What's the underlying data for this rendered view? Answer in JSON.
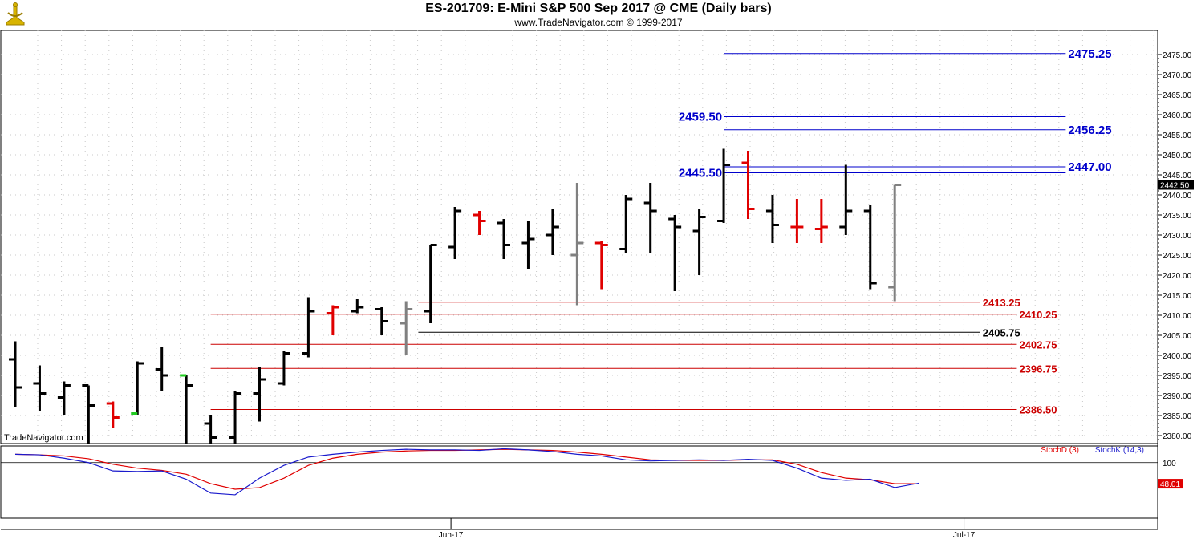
{
  "header": {
    "title": "ES-201709:  E-Mini S&P 500 Sep 2017 @ CME  (Daily bars)",
    "subtitle": "www.TradeNavigator.com © 1999-2017",
    "watermark": "TradeNavigator.com"
  },
  "colors": {
    "black_bar": "#000000",
    "red_bar": "#e00000",
    "gray_bar": "#808080",
    "green_tick": "#22cc22",
    "blue_level": "#0000cc",
    "red_level": "#cc0000",
    "stoch_d": "#e00000",
    "stoch_k": "#1a1acc"
  },
  "chart_data": {
    "type": "ohlc",
    "y_range": [
      2378,
      2481
    ],
    "y_ticks": [
      "2475.00",
      "2470.00",
      "2465.00",
      "2460.00",
      "2455.00",
      "2450.00",
      "2445.00",
      "2440.00",
      "2435.00",
      "2430.00",
      "2425.00",
      "2420.00",
      "2415.00",
      "2410.00",
      "2405.00",
      "2400.00",
      "2395.00",
      "2390.00",
      "2385.00",
      "2380.00"
    ],
    "last_price_label": "2442.50",
    "last_price": 2442.5,
    "x_labels": [
      {
        "label": "Jun-17",
        "bar": 18
      },
      {
        "label": "Jul-17",
        "bar": 39
      }
    ],
    "bars": [
      {
        "o": 2399,
        "h": 2403.5,
        "l": 2387,
        "c": 2392,
        "color": "black"
      },
      {
        "o": 2393,
        "h": 2397.5,
        "l": 2386,
        "c": 2390.5,
        "color": "black"
      },
      {
        "o": 2389.5,
        "h": 2393.5,
        "l": 2385,
        "c": 2392.5,
        "color": "black"
      },
      {
        "o": 2392.5,
        "h": 2392.5,
        "l": 2378,
        "c": 2387.5,
        "color": "black"
      },
      {
        "o": 2388,
        "h": 2388.5,
        "l": 2382,
        "c": 2384.5,
        "color": "red"
      },
      {
        "o": 2385.5,
        "h": 2398.5,
        "l": 2385,
        "c": 2398,
        "color": "black",
        "open_color": "green"
      },
      {
        "o": 2396.5,
        "h": 2402,
        "l": 2391,
        "c": 2395,
        "color": "black"
      },
      {
        "o": 2395,
        "h": 2395,
        "l": 2378,
        "c": 2392.5,
        "color": "black",
        "open_color": "green"
      },
      {
        "o": 2383,
        "h": 2385,
        "l": 2378,
        "c": 2379.5,
        "color": "black"
      },
      {
        "o": 2379.5,
        "h": 2391,
        "l": 2378,
        "c": 2390.5,
        "color": "black"
      },
      {
        "o": 2390.5,
        "h": 2397,
        "l": 2383.5,
        "c": 2394,
        "color": "black"
      },
      {
        "o": 2393,
        "h": 2401,
        "l": 2392.5,
        "c": 2400.5,
        "color": "black"
      },
      {
        "o": 2400.5,
        "h": 2414.5,
        "l": 2399.5,
        "c": 2411,
        "color": "black"
      },
      {
        "o": 2410.5,
        "h": 2412.5,
        "l": 2405,
        "c": 2412,
        "color": "red"
      },
      {
        "o": 2411,
        "h": 2414,
        "l": 2410.5,
        "c": 2412,
        "color": "black"
      },
      {
        "o": 2411.5,
        "h": 2412,
        "l": 2405,
        "c": 2408.5,
        "color": "black"
      },
      {
        "o": 2408,
        "h": 2413.5,
        "l": 2400,
        "c": 2411.5,
        "color": "gray"
      },
      {
        "o": 2411,
        "h": 2427.5,
        "l": 2408,
        "c": 2427.5,
        "color": "black"
      },
      {
        "o": 2427,
        "h": 2437,
        "l": 2424,
        "c": 2436,
        "color": "black"
      },
      {
        "o": 2435,
        "h": 2436,
        "l": 2430,
        "c": 2433.5,
        "color": "red"
      },
      {
        "o": 2433,
        "h": 2434,
        "l": 2424,
        "c": 2427.5,
        "color": "black"
      },
      {
        "o": 2428,
        "h": 2433.5,
        "l": 2421.5,
        "c": 2429,
        "color": "black"
      },
      {
        "o": 2430,
        "h": 2436.5,
        "l": 2425,
        "c": 2432,
        "color": "black"
      },
      {
        "o": 2425,
        "h": 2443,
        "l": 2412.5,
        "c": 2428,
        "color": "gray"
      },
      {
        "o": 2428,
        "h": 2428.5,
        "l": 2416.5,
        "c": 2427.5,
        "color": "red"
      },
      {
        "o": 2426.5,
        "h": 2440,
        "l": 2425.5,
        "c": 2439,
        "color": "black"
      },
      {
        "o": 2438,
        "h": 2443,
        "l": 2425.5,
        "c": 2436,
        "color": "black"
      },
      {
        "o": 2434,
        "h": 2435,
        "l": 2416,
        "c": 2432,
        "color": "black"
      },
      {
        "o": 2431,
        "h": 2436.5,
        "l": 2420,
        "c": 2434.5,
        "color": "black"
      },
      {
        "o": 2433.5,
        "h": 2451.5,
        "l": 2433,
        "c": 2447.5,
        "color": "black"
      },
      {
        "o": 2448,
        "h": 2451,
        "l": 2434,
        "c": 2436.5,
        "color": "red"
      },
      {
        "o": 2436,
        "h": 2440,
        "l": 2428,
        "c": 2432.5,
        "color": "black"
      },
      {
        "o": 2432,
        "h": 2439,
        "l": 2428,
        "c": 2432,
        "color": "red"
      },
      {
        "o": 2431.5,
        "h": 2439,
        "l": 2428,
        "c": 2432,
        "color": "red"
      },
      {
        "o": 2432,
        "h": 2447.5,
        "l": 2430,
        "c": 2436,
        "color": "black"
      },
      {
        "o": 2436,
        "h": 2437.5,
        "l": 2416.5,
        "c": 2418,
        "color": "black"
      },
      {
        "o": 2417,
        "h": 2442.5,
        "l": 2413.5,
        "c": 2442.5,
        "color": "gray"
      }
    ],
    "levels": [
      {
        "value": 2475.25,
        "label": "2475.25",
        "color": "blue",
        "from_bar": 29,
        "to_bar": 43,
        "label_at": "right"
      },
      {
        "value": 2459.5,
        "label": "2459.50",
        "color": "blue",
        "from_bar": 29,
        "to_bar": 43,
        "label_at": "left"
      },
      {
        "value": 2456.25,
        "label": "2456.25",
        "color": "blue",
        "from_bar": 29,
        "to_bar": 43,
        "label_at": "right"
      },
      {
        "value": 2447,
        "label": "2447.00",
        "color": "blue",
        "from_bar": 29,
        "to_bar": 43,
        "label_at": "right"
      },
      {
        "value": 2445.5,
        "label": "2445.50",
        "color": "blue",
        "from_bar": 29,
        "to_bar": 43,
        "label_at": "left"
      },
      {
        "value": 2413.25,
        "label": "2413.25",
        "color": "red",
        "from_bar": 16.5,
        "to_bar": 39.5,
        "label_at": "right"
      },
      {
        "value": 2410.25,
        "label": "2410.25",
        "color": "red",
        "from_bar": 8,
        "to_bar": 41,
        "label_at": "right"
      },
      {
        "value": 2405.75,
        "label": "2405.75",
        "color": "black",
        "from_bar": 16.5,
        "to_bar": 39.5,
        "label_at": "right"
      },
      {
        "value": 2402.75,
        "label": "2402.75",
        "color": "red",
        "from_bar": 8,
        "to_bar": 41,
        "label_at": "right"
      },
      {
        "value": 2396.75,
        "label": "2396.75",
        "color": "red",
        "from_bar": 8,
        "to_bar": 41,
        "label_at": "right"
      },
      {
        "value": 2386.5,
        "label": "2386.50",
        "color": "red",
        "from_bar": 8,
        "to_bar": 41,
        "label_at": "right"
      }
    ],
    "stochastic": {
      "legend_d": "StochD (3)",
      "legend_k": "StochK (14,3)",
      "level_label": "100",
      "level_value": 100,
      "y_range": [
        0,
        130
      ],
      "last_value_label": "48.01",
      "k": [
        {
          "bar": 0,
          "v": 115
        },
        {
          "bar": 1,
          "v": 114
        },
        {
          "bar": 2,
          "v": 108
        },
        {
          "bar": 3,
          "v": 100
        },
        {
          "bar": 4,
          "v": 85
        },
        {
          "bar": 5,
          "v": 84
        },
        {
          "bar": 6,
          "v": 85
        },
        {
          "bar": 7,
          "v": 70
        },
        {
          "bar": 8,
          "v": 45
        },
        {
          "bar": 9,
          "v": 42
        },
        {
          "bar": 10,
          "v": 72
        },
        {
          "bar": 11,
          "v": 95
        },
        {
          "bar": 12,
          "v": 110
        },
        {
          "bar": 13,
          "v": 115
        },
        {
          "bar": 14,
          "v": 119
        },
        {
          "bar": 15,
          "v": 122
        },
        {
          "bar": 16,
          "v": 124
        },
        {
          "bar": 17,
          "v": 123
        },
        {
          "bar": 18,
          "v": 123
        },
        {
          "bar": 19,
          "v": 122
        },
        {
          "bar": 20,
          "v": 125
        },
        {
          "bar": 21,
          "v": 123
        },
        {
          "bar": 22,
          "v": 120
        },
        {
          "bar": 23,
          "v": 115
        },
        {
          "bar": 24,
          "v": 112
        },
        {
          "bar": 25,
          "v": 105
        },
        {
          "bar": 26,
          "v": 103
        },
        {
          "bar": 27,
          "v": 104
        },
        {
          "bar": 28,
          "v": 105
        },
        {
          "bar": 29,
          "v": 104
        },
        {
          "bar": 30,
          "v": 106
        },
        {
          "bar": 31,
          "v": 104
        },
        {
          "bar": 32,
          "v": 90
        },
        {
          "bar": 33,
          "v": 72
        },
        {
          "bar": 34,
          "v": 68
        },
        {
          "bar": 35,
          "v": 70
        },
        {
          "bar": 36,
          "v": 55
        },
        {
          "bar": 37,
          "v": 63
        }
      ],
      "d": [
        {
          "bar": 0,
          "v": 115
        },
        {
          "bar": 1,
          "v": 114
        },
        {
          "bar": 2,
          "v": 112
        },
        {
          "bar": 3,
          "v": 107
        },
        {
          "bar": 4,
          "v": 97
        },
        {
          "bar": 5,
          "v": 90
        },
        {
          "bar": 6,
          "v": 86
        },
        {
          "bar": 7,
          "v": 79
        },
        {
          "bar": 8,
          "v": 62
        },
        {
          "bar": 9,
          "v": 52
        },
        {
          "bar": 10,
          "v": 55
        },
        {
          "bar": 11,
          "v": 72
        },
        {
          "bar": 12,
          "v": 95
        },
        {
          "bar": 13,
          "v": 108
        },
        {
          "bar": 14,
          "v": 115
        },
        {
          "bar": 15,
          "v": 119
        },
        {
          "bar": 16,
          "v": 121
        },
        {
          "bar": 17,
          "v": 122
        },
        {
          "bar": 18,
          "v": 122
        },
        {
          "bar": 19,
          "v": 123
        },
        {
          "bar": 20,
          "v": 124
        },
        {
          "bar": 21,
          "v": 123
        },
        {
          "bar": 22,
          "v": 122
        },
        {
          "bar": 23,
          "v": 119
        },
        {
          "bar": 24,
          "v": 115
        },
        {
          "bar": 25,
          "v": 110
        },
        {
          "bar": 26,
          "v": 105
        },
        {
          "bar": 27,
          "v": 104
        },
        {
          "bar": 28,
          "v": 104
        },
        {
          "bar": 29,
          "v": 104
        },
        {
          "bar": 30,
          "v": 105
        },
        {
          "bar": 31,
          "v": 105
        },
        {
          "bar": 32,
          "v": 97
        },
        {
          "bar": 33,
          "v": 82
        },
        {
          "bar": 34,
          "v": 72
        },
        {
          "bar": 35,
          "v": 69
        },
        {
          "bar": 36,
          "v": 62
        },
        {
          "bar": 37,
          "v": 62
        }
      ]
    }
  }
}
